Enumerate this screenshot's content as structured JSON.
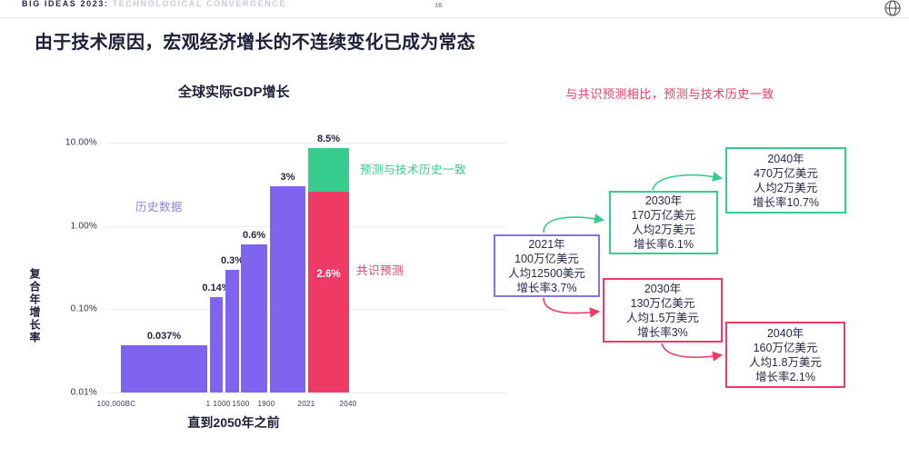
{
  "header": {
    "brand_bold": "BIG IDEAS 2023:",
    "brand_light": "TECHNOLOGICAL CONVERGENCE",
    "page_number": "16",
    "icon": "globe-icon"
  },
  "slide_title": "由于技术原因，宏观经济增长的不连续变化已成为常态",
  "chart_data": {
    "type": "bar",
    "title": "全球实际GDP增长",
    "xlabel": "直到2050年之前",
    "ylabel": "复合年增长率",
    "y_scale": "log",
    "ylim_pct": [
      0.01,
      10
    ],
    "y_ticks": [
      "10.00%",
      "1.00%",
      "0.10%",
      "0.01%"
    ],
    "y_tick_values": [
      10,
      1,
      0.1,
      0.01
    ],
    "x_boundary_labels": [
      "100,000BC",
      "1",
      "1000",
      "1500",
      "1900",
      "2021",
      "2040"
    ],
    "bars": [
      {
        "period": "100,000BC-1",
        "label": "0.037%",
        "value": 0.037,
        "series": "历史数据"
      },
      {
        "period": "1-1000",
        "label": "0.14%",
        "value": 0.14,
        "series": "历史数据"
      },
      {
        "period": "1000-1500",
        "label": "0.3%",
        "value": 0.3,
        "series": "历史数据"
      },
      {
        "period": "1500-1900",
        "label": "0.6%",
        "value": 0.6,
        "series": "历史数据"
      },
      {
        "period": "1900-2021",
        "label": "3%",
        "value": 3,
        "series": "历史数据"
      },
      {
        "period": "2021-2040",
        "label": "8.5%",
        "value": 8.5,
        "series": "预测与技术历史一致",
        "consensus_overlay": {
          "label": "2.6%",
          "value": 2.6,
          "series": "共识预测"
        }
      }
    ],
    "annotations": {
      "historical": "历史数据",
      "forecast_tech": "预测与技术历史一致",
      "consensus": "共识预测"
    },
    "grid": true,
    "legend_position": "inline-annotations"
  },
  "flowchart": {
    "title": "与共识预测相比，预测与技术历史一致",
    "nodes": [
      {
        "id": "base-2021",
        "theme": "purple",
        "lines": [
          "2021年",
          "100万亿美元",
          "人均12500美元",
          "增长率3.7%"
        ]
      },
      {
        "id": "tech-2030",
        "theme": "green",
        "lines": [
          "2030年",
          "170万亿美元",
          "人均2万美元",
          "增长率6.1%"
        ]
      },
      {
        "id": "tech-2040",
        "theme": "green",
        "lines": [
          "2040年",
          "470万亿美元",
          "人均2万美元",
          "增长率10.7%"
        ]
      },
      {
        "id": "consensus-2030",
        "theme": "pink",
        "lines": [
          "2030年",
          "130万亿美元",
          "人均1.5万美元",
          "增长率3%"
        ]
      },
      {
        "id": "consensus-2040",
        "theme": "pink",
        "lines": [
          "2040年",
          "160万亿美元",
          "人均1.8万美元",
          "增长率2.1%"
        ]
      }
    ]
  },
  "colors": {
    "historical_purple": "#7E64EE",
    "consensus_pink": "#EE3A64",
    "forecast_green": "#36CC8E",
    "annotation_purple": "#8D84E6",
    "title_navy": "#1C2038",
    "header_gray": "#C7CBD3",
    "gridline": "#ECEDF0"
  }
}
